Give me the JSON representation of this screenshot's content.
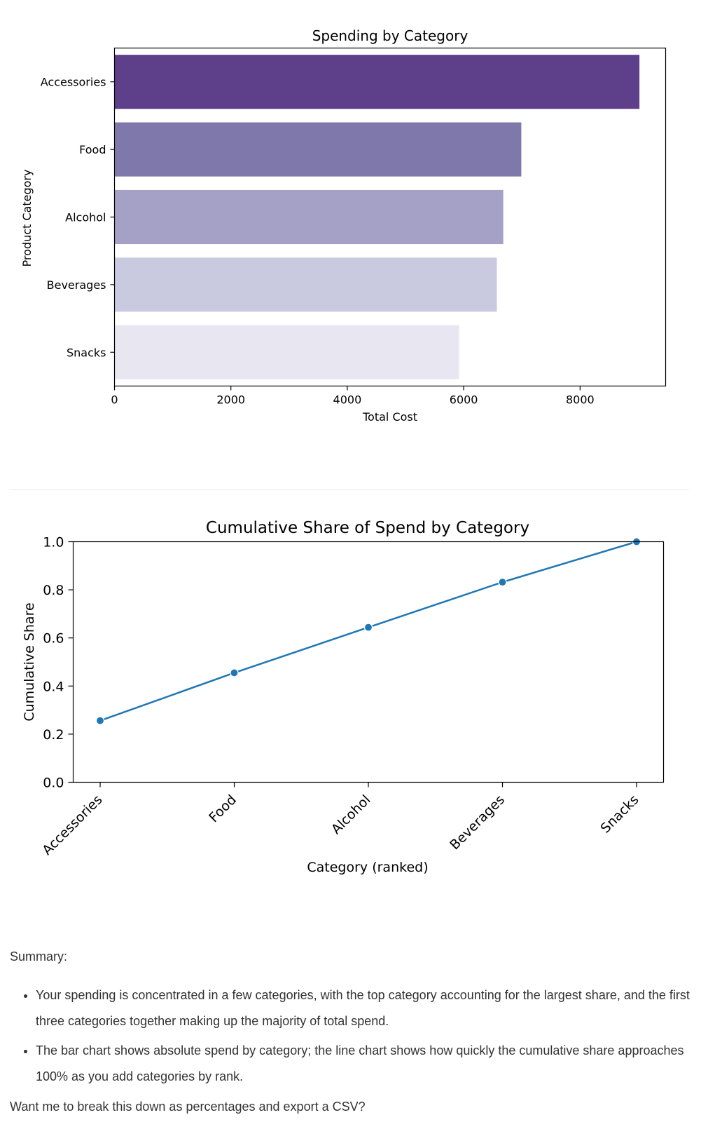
{
  "chart_data": [
    {
      "type": "bar",
      "orientation": "horizontal",
      "title": "Spending by Category",
      "xlabel": "Total Cost",
      "ylabel": "Product Category",
      "categories": [
        "Accessories",
        "Food",
        "Alcohol",
        "Beverages",
        "Snacks"
      ],
      "values": [
        9020,
        6990,
        6680,
        6570,
        5920
      ],
      "colors": [
        "#5e3f8a",
        "#7f78aa",
        "#a4a0c6",
        "#c9c9df",
        "#e8e7f1"
      ],
      "xticks": [
        0,
        2000,
        4000,
        6000,
        8000
      ],
      "xlim": [
        0,
        9470
      ],
      "grid": false,
      "legend": "none"
    },
    {
      "type": "line",
      "title": "Cumulative Share of Spend by Category",
      "xlabel": "Category (ranked)",
      "ylabel": "Cumulative Share",
      "categories": [
        "Accessories",
        "Food",
        "Alcohol",
        "Beverages",
        "Snacks"
      ],
      "series": [
        {
          "values": [
            0.256,
            0.455,
            0.644,
            0.832,
            1.0
          ],
          "color": "#1f77b4"
        }
      ],
      "yticks": [
        "0.0",
        "0.2",
        "0.4",
        "0.6",
        "0.8",
        "1.0"
      ],
      "ylim": [
        0,
        1
      ],
      "grid": false,
      "legend": "none"
    }
  ],
  "summary": {
    "heading": "Summary:",
    "bullets": [
      "Your spending is concentrated in a few categories, with the top category accounting for the largest share, and the first three categories together making up the majority of total spend.",
      "The bar chart shows absolute spend by category; the line chart shows how quickly the cumulative share approaches 100% as you add categories by rank."
    ],
    "question": "Want me to break this down as percentages and export a CSV?"
  }
}
